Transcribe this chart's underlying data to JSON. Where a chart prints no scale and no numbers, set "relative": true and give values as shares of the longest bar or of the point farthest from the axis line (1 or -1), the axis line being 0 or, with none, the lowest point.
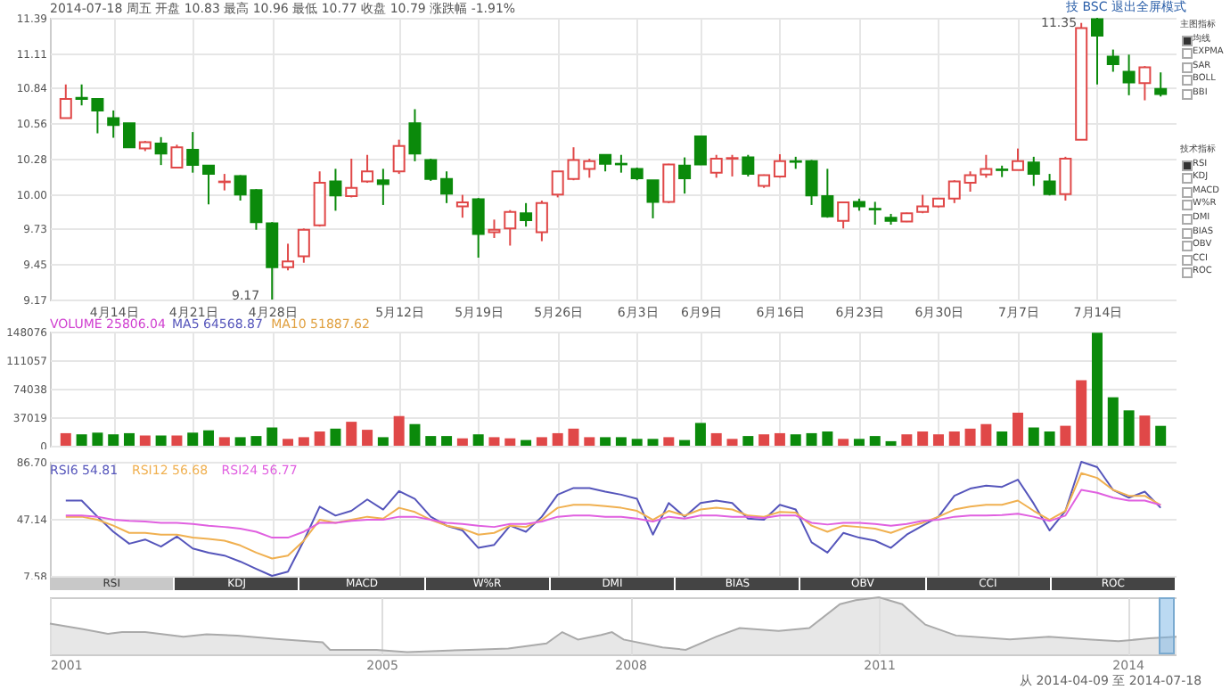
{
  "chart_data": [
    {
      "type": "candlestick",
      "categories": [
        null,
        null,
        null,
        "4月14日",
        null,
        null,
        null,
        null,
        "4月21日",
        null,
        null,
        null,
        null,
        "4月28日",
        null,
        null,
        null,
        null,
        null,
        null,
        null,
        "5月12日",
        null,
        null,
        null,
        null,
        "5月19日",
        null,
        null,
        null,
        null,
        "5月26日",
        null,
        null,
        null,
        null,
        "6月3日",
        null,
        null,
        null,
        "6月9日",
        null,
        null,
        null,
        null,
        "6月16日",
        null,
        null,
        null,
        null,
        "6月23日",
        null,
        null,
        null,
        null,
        "6月30日",
        null,
        null,
        null,
        null,
        "7月7日",
        null,
        null,
        null,
        null,
        "7月14日",
        null,
        null,
        null,
        null
      ],
      "ohlc": [
        [
          10.6,
          10.865,
          10.6,
          10.75
        ],
        [
          10.76,
          10.865,
          10.7,
          10.75
        ],
        [
          10.75,
          10.75,
          10.48,
          10.66
        ],
        [
          10.6,
          10.66,
          10.445,
          10.545
        ],
        [
          10.56,
          10.56,
          10.37,
          10.37
        ],
        [
          10.36,
          10.42,
          10.34,
          10.41
        ],
        [
          10.4,
          10.45,
          10.23,
          10.32
        ],
        [
          10.21,
          10.39,
          10.21,
          10.37
        ],
        [
          10.35,
          10.49,
          10.17,
          10.23
        ],
        [
          10.225,
          10.23,
          9.92,
          10.16
        ],
        [
          10.095,
          10.16,
          10.03,
          10.1
        ],
        [
          10.143,
          10.15,
          9.95,
          9.997
        ],
        [
          10.033,
          10.04,
          9.72,
          9.78
        ],
        [
          9.77,
          9.78,
          9.17,
          9.425
        ],
        [
          9.425,
          9.61,
          9.4,
          9.47
        ],
        [
          9.51,
          9.73,
          9.46,
          9.72
        ],
        [
          9.755,
          10.18,
          9.745,
          10.09
        ],
        [
          10.1,
          10.2,
          9.87,
          9.99
        ],
        [
          9.985,
          10.28,
          9.975,
          10.05
        ],
        [
          10.1,
          10.31,
          10.09,
          10.18
        ],
        [
          10.11,
          10.2,
          9.915,
          10.08
        ],
        [
          10.18,
          10.43,
          10.16,
          10.38
        ],
        [
          10.56,
          10.67,
          10.26,
          10.32
        ],
        [
          10.27,
          10.28,
          10.105,
          10.12
        ],
        [
          10.12,
          10.18,
          9.93,
          10.005
        ],
        [
          9.905,
          9.995,
          9.815,
          9.935
        ],
        [
          9.96,
          9.97,
          9.5,
          9.686
        ],
        [
          9.7,
          9.8,
          9.655,
          9.72
        ],
        [
          9.73,
          9.875,
          9.595,
          9.86
        ],
        [
          9.85,
          9.93,
          9.745,
          9.795
        ],
        [
          9.7,
          9.95,
          9.63,
          9.93
        ],
        [
          9.997,
          10.18,
          9.975,
          10.18
        ],
        [
          10.12,
          10.37,
          10.11,
          10.27
        ],
        [
          10.2,
          10.28,
          10.13,
          10.26
        ],
        [
          10.31,
          10.31,
          10.18,
          10.24
        ],
        [
          10.24,
          10.31,
          10.17,
          10.235
        ],
        [
          10.2,
          10.21,
          10.11,
          10.125
        ],
        [
          10.11,
          10.11,
          9.81,
          9.94
        ],
        [
          9.94,
          10.24,
          9.93,
          10.235
        ],
        [
          10.225,
          10.29,
          10.005,
          10.125
        ],
        [
          10.455,
          10.46,
          10.23,
          10.235
        ],
        [
          10.17,
          10.31,
          10.13,
          10.28
        ],
        [
          10.28,
          10.31,
          10.14,
          10.285
        ],
        [
          10.29,
          10.31,
          10.14,
          10.16
        ],
        [
          10.065,
          10.155,
          10.05,
          10.15
        ],
        [
          10.14,
          10.315,
          10.13,
          10.26
        ],
        [
          10.26,
          10.295,
          10.2,
          10.255
        ],
        [
          10.26,
          10.27,
          9.915,
          9.99
        ],
        [
          9.985,
          10.2,
          9.815,
          9.825
        ],
        [
          9.79,
          9.94,
          9.73,
          9.935
        ],
        [
          9.94,
          9.965,
          9.87,
          9.905
        ],
        [
          9.885,
          9.94,
          9.76,
          9.88
        ],
        [
          9.815,
          9.845,
          9.76,
          9.79
        ],
        [
          9.785,
          9.855,
          9.78,
          9.85
        ],
        [
          9.86,
          9.995,
          9.85,
          9.905
        ],
        [
          9.905,
          9.97,
          9.895,
          9.965
        ],
        [
          9.965,
          10.11,
          9.93,
          10.1
        ],
        [
          10.09,
          10.18,
          10.02,
          10.15
        ],
        [
          10.155,
          10.31,
          10.13,
          10.2
        ],
        [
          10.195,
          10.225,
          10.135,
          10.19
        ],
        [
          10.19,
          10.36,
          10.19,
          10.26
        ],
        [
          10.25,
          10.295,
          10.065,
          10.16
        ],
        [
          10.1,
          10.16,
          9.99,
          10.0
        ],
        [
          10.0,
          10.295,
          9.95,
          10.28
        ],
        [
          10.43,
          11.35,
          10.43,
          11.31
        ],
        [
          11.38,
          11.39,
          10.865,
          11.25
        ],
        [
          11.085,
          11.14,
          10.965,
          11.025
        ],
        [
          10.965,
          11.1,
          10.78,
          10.88
        ],
        [
          10.875,
          11.01,
          10.74,
          11.0
        ],
        [
          10.83,
          10.96,
          10.77,
          10.79
        ]
      ],
      "ylim": [
        9.17,
        11.39
      ],
      "yticks": [
        9.17,
        9.45,
        9.73,
        {
          "value": 10,
          "label": "10.00"
        },
        10.28,
        10.56,
        10.84,
        11.11,
        11.39
      ],
      "grid": true,
      "annotations": [
        "2014-07-18 周五 开盘 10.83 最高 10.96 最低 10.77 收盘 10.79 涨跌幅 -1.91%",
        "技 BSC 退出全屏模式",
        "11.35",
        "9.17",
        "主图指标",
        "均线",
        "EXPMA",
        "SAR",
        "BOLL",
        "BBI",
        "技术指标",
        "RSI",
        "KDJ",
        "MACD",
        "W%R",
        "DMI",
        "BIAS",
        "OBV",
        "CCI",
        "ROC"
      ]
    },
    {
      "type": "bar",
      "categories": [
        null,
        null,
        null,
        null,
        null,
        null,
        null,
        null,
        null,
        null,
        null,
        null,
        null,
        null,
        null,
        null,
        null,
        null,
        null,
        null,
        null,
        null,
        null,
        null,
        null,
        null,
        null,
        null,
        null,
        null,
        null,
        null,
        null,
        null,
        null,
        null,
        null,
        null,
        null,
        null,
        null,
        null,
        null,
        null,
        null,
        null,
        null,
        null,
        null,
        null,
        null,
        null,
        null,
        null,
        null,
        null,
        null,
        null,
        null,
        null,
        null,
        null,
        null,
        null,
        null,
        null,
        null,
        null,
        null,
        null
      ],
      "values": [
        16300,
        14800,
        17000,
        14800,
        16300,
        13300,
        13300,
        13300,
        17000,
        20000,
        11100,
        11100,
        12600,
        23700,
        8900,
        11100,
        18500,
        22200,
        31100,
        20700,
        11100,
        38500,
        28100,
        12600,
        12600,
        9600,
        14800,
        11100,
        9600,
        7400,
        11100,
        16300,
        22200,
        11100,
        11100,
        11100,
        8900,
        8900,
        11100,
        7400,
        29600,
        16300,
        8900,
        12600,
        14800,
        16300,
        14800,
        16300,
        18500,
        8900,
        8900,
        12600,
        5900,
        14800,
        18500,
        14800,
        18500,
        22200,
        28100,
        18500,
        42900,
        23700,
        18500,
        25900,
        85100,
        146600,
        62900,
        45900,
        39200,
        25806
      ],
      "colors": [
        "#e04848",
        "#0b8a0b",
        "#0b8a0b",
        "#0b8a0b",
        "#0b8a0b",
        "#e04848",
        "#0b8a0b",
        "#e04848",
        "#0b8a0b",
        "#0b8a0b",
        "#e04848",
        "#0b8a0b",
        "#0b8a0b",
        "#0b8a0b",
        "#e04848",
        "#e04848",
        "#e04848",
        "#0b8a0b",
        "#e04848",
        "#e04848",
        "#0b8a0b",
        "#e04848",
        "#0b8a0b",
        "#0b8a0b",
        "#0b8a0b",
        "#e04848",
        "#0b8a0b",
        "#e04848",
        "#e04848",
        "#0b8a0b",
        "#e04848",
        "#e04848",
        "#e04848",
        "#e04848",
        "#0b8a0b",
        "#0b8a0b",
        "#0b8a0b",
        "#0b8a0b",
        "#e04848",
        "#0b8a0b",
        "#0b8a0b",
        "#e04848",
        "#e04848",
        "#0b8a0b",
        "#e04848",
        "#e04848",
        "#0b8a0b",
        "#0b8a0b",
        "#0b8a0b",
        "#e04848",
        "#0b8a0b",
        "#0b8a0b",
        "#0b8a0b",
        "#e04848",
        "#e04848",
        "#e04848",
        "#e04848",
        "#e04848",
        "#e04848",
        "#0b8a0b",
        "#e04848",
        "#0b8a0b",
        "#0b8a0b",
        "#e04848",
        "#e04848",
        "#0b8a0b",
        "#0b8a0b",
        "#0b8a0b",
        "#e04848",
        "#0b8a0b"
      ],
      "ylim": [
        0,
        148076
      ],
      "yticks": [
        0,
        37019,
        74038,
        111057,
        148076
      ],
      "grid": true,
      "tick_labels": "y",
      "annotations": [
        "VOLUME 25806.04",
        "MA5 64568.87",
        "MA10 51887.62"
      ]
    },
    {
      "type": "line",
      "categories": [
        null,
        null,
        null,
        null,
        null,
        null,
        null,
        null,
        null,
        null,
        null,
        null,
        null,
        null,
        null,
        null,
        null,
        null,
        null,
        null,
        null,
        null,
        null,
        null,
        null,
        null,
        null,
        null,
        null,
        null,
        null,
        null,
        null,
        null,
        null,
        null,
        null,
        null,
        null,
        null,
        null,
        null,
        null,
        null,
        null,
        null,
        null,
        null,
        null,
        null,
        null,
        null,
        null,
        null,
        null,
        null,
        null,
        null,
        null,
        null,
        null,
        null,
        null,
        null,
        null,
        null,
        null,
        null,
        null,
        null
      ],
      "series": [
        {
          "name": "RSI6 54.81",
          "color": "#5555bb",
          "values": [
            59.8,
            59.8,
            48.6,
            38.2,
            29.9,
            32.8,
            27.9,
            34.9,
            26.6,
            23.7,
            21.7,
            17.5,
            12.5,
            7.58,
            10.5,
            32.0,
            55.6,
            49.4,
            52.7,
            60.6,
            53.6,
            66.4,
            61.0,
            48.6,
            42.4,
            39.1,
            27.0,
            29.1,
            42.4,
            38.2,
            48.6,
            63.9,
            68.5,
            68.5,
            66.0,
            63.9,
            61.0,
            36.2,
            58.1,
            48.6,
            58.1,
            59.8,
            58.1,
            47.3,
            46.5,
            56.9,
            53.6,
            30.8,
            23.7,
            37.4,
            34.1,
            32.0,
            27.0,
            36.2,
            42.4,
            48.6,
            63.1,
            68.1,
            70.1,
            69.3,
            74.3,
            57.7,
            39.1,
            52.7,
            86.7,
            83.0,
            67.2,
            61.8,
            66.0,
            54.81
          ]
        },
        {
          "name": "RSI12 56.68",
          "color": "#f0b050",
          "values": [
            48.6,
            48.6,
            46.5,
            42.4,
            37.4,
            37.4,
            36.2,
            36.2,
            34.1,
            33.3,
            32.0,
            28.7,
            23.7,
            19.6,
            21.7,
            32.0,
            46.5,
            44.4,
            46.5,
            48.6,
            47.3,
            54.8,
            51.9,
            46.5,
            42.4,
            40.3,
            36.2,
            37.4,
            42.4,
            41.5,
            46.5,
            54.8,
            56.9,
            56.9,
            56.0,
            54.8,
            52.7,
            46.5,
            52.7,
            49.4,
            53.6,
            54.8,
            53.6,
            49.4,
            48.6,
            51.9,
            51.5,
            42.4,
            38.2,
            42.4,
            41.5,
            40.3,
            37.4,
            41.5,
            44.4,
            48.6,
            53.6,
            55.6,
            56.9,
            56.9,
            59.8,
            52.7,
            46.5,
            52.7,
            78.8,
            75.5,
            67.2,
            63.1,
            63.1,
            56.68
          ]
        },
        {
          "name": "RSI24 56.77",
          "color": "#e060e0",
          "values": [
            49.4,
            49.4,
            48.6,
            46.5,
            45.7,
            45.3,
            44.4,
            44.4,
            43.6,
            42.4,
            41.5,
            40.3,
            38.2,
            34.1,
            34.1,
            38.2,
            44.4,
            44.4,
            45.7,
            46.5,
            46.5,
            48.6,
            48.6,
            46.5,
            44.4,
            43.6,
            42.4,
            41.5,
            43.6,
            43.6,
            45.3,
            48.6,
            49.4,
            49.4,
            48.6,
            48.6,
            47.3,
            45.3,
            48.6,
            47.3,
            49.4,
            49.4,
            48.6,
            48.6,
            47.7,
            49.4,
            49.4,
            44.4,
            43.2,
            44.4,
            44.4,
            43.6,
            42.4,
            43.6,
            45.7,
            46.5,
            48.6,
            49.4,
            49.4,
            49.8,
            50.7,
            48.6,
            45.7,
            49.4,
            67.2,
            65.2,
            61.8,
            59.8,
            59.8,
            56.77
          ]
        }
      ],
      "ylim": [
        7.58,
        86.7
      ],
      "yticks": [
        7.58,
        47.14,
        {
          "value": 86.7,
          "label": "86.70"
        }
      ],
      "grid": true,
      "tick_labels": "y",
      "legend": "top left",
      "annotations": [
        "RSI",
        "KDJ",
        "MACD",
        "W%R",
        "DMI",
        "BIAS",
        "OBV",
        "CCI",
        "ROC"
      ]
    },
    {
      "type": "area",
      "relative": true,
      "x": [
        2001.0,
        2001.4,
        2001.7,
        2001.87,
        2002.15,
        2002.61,
        2002.89,
        2003.26,
        2003.73,
        2004.29,
        2004.38,
        2004.94,
        2005.31,
        2006.06,
        2006.53,
        2006.99,
        2007.18,
        2007.37,
        2007.65,
        2007.78,
        2007.92,
        2008.39,
        2008.67,
        2009.04,
        2009.32,
        2009.79,
        2010.16,
        2010.53,
        2010.72,
        2011.0,
        2011.28,
        2011.56,
        2011.93,
        2012.58,
        2013.05,
        2013.52,
        2013.89,
        2014.26,
        2014.59
      ],
      "values": [
        0.54,
        0.44,
        0.36,
        0.39,
        0.39,
        0.31,
        0.35,
        0.33,
        0.27,
        0.21,
        0.08,
        0.08,
        0.04,
        0.08,
        0.1,
        0.19,
        0.39,
        0.26,
        0.34,
        0.39,
        0.26,
        0.12,
        0.08,
        0.31,
        0.46,
        0.41,
        0.46,
        0.88,
        0.95,
        1.0,
        0.88,
        0.52,
        0.33,
        0.26,
        0.31,
        0.26,
        0.23,
        0.28,
        0.31
      ],
      "color": "#dddddd",
      "xlim": [
        2001,
        2014.59
      ],
      "xticks": [
        2001,
        2005,
        2008,
        2011,
        2014
      ],
      "grid": "x",
      "annotations": [
        "从 2014-04-09 至 2014-07-18"
      ]
    }
  ]
}
